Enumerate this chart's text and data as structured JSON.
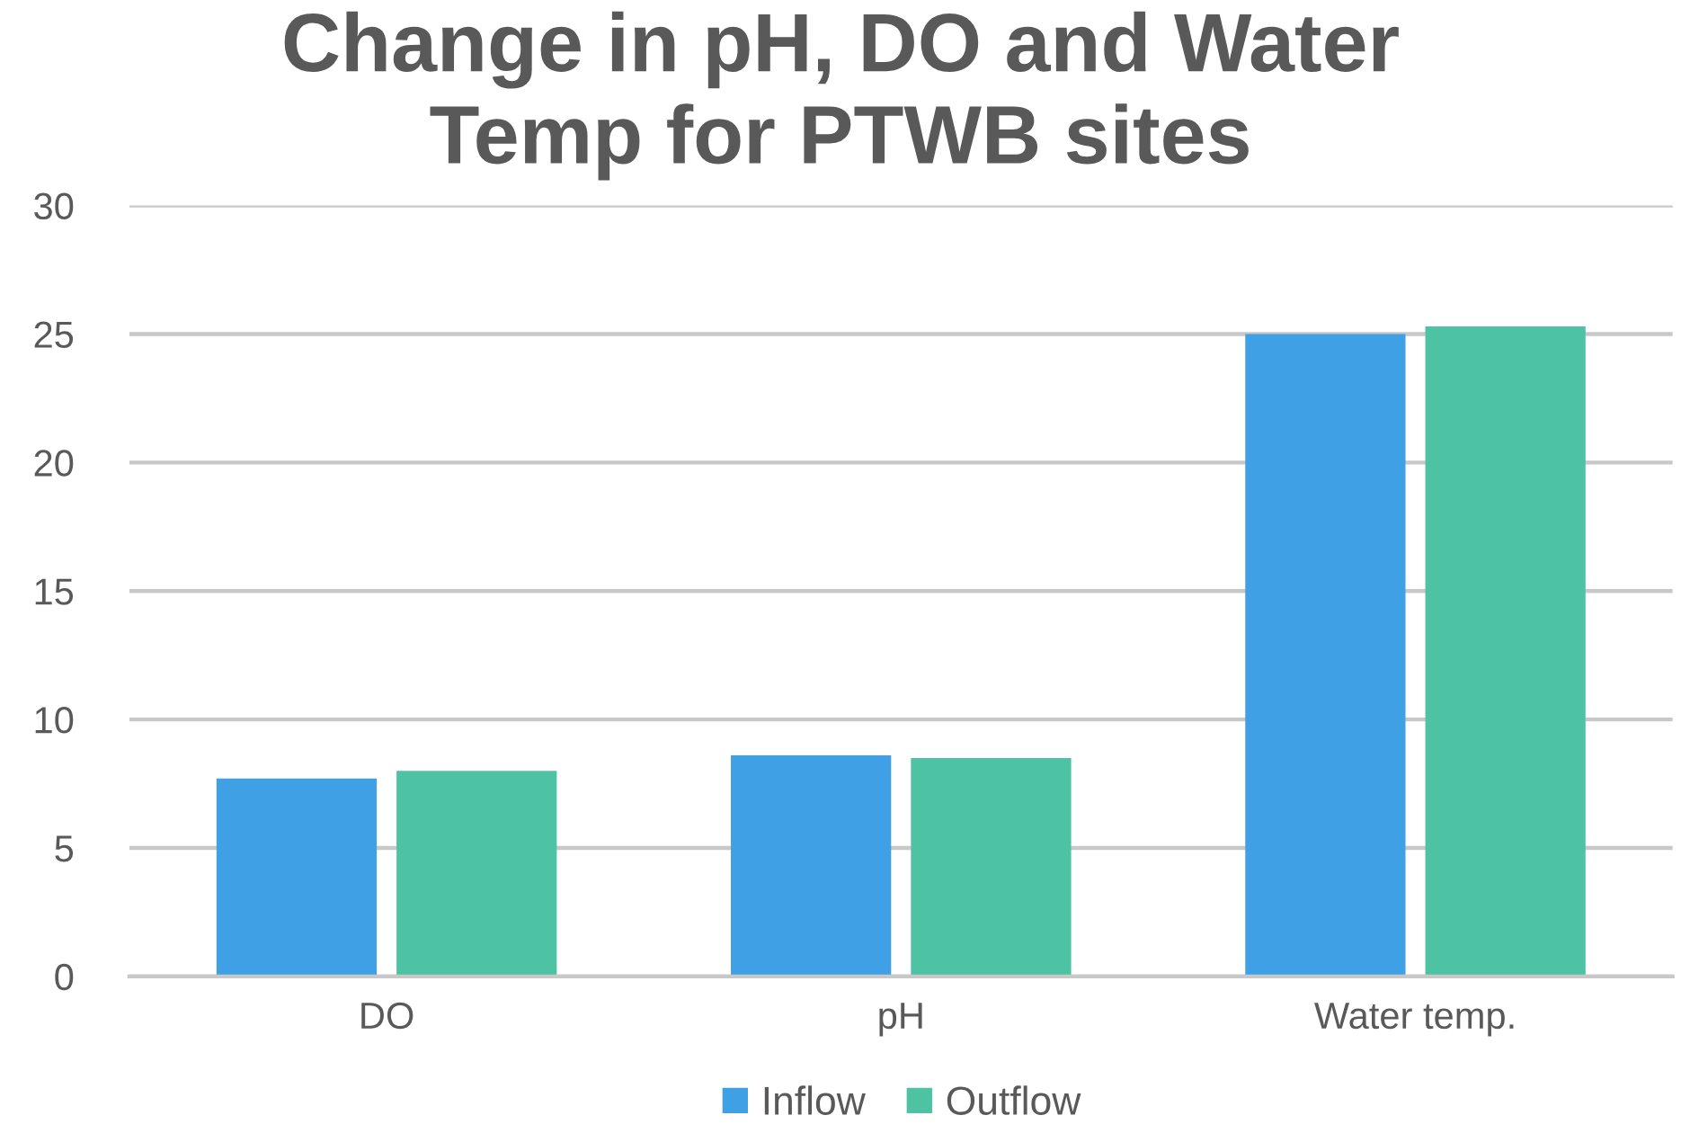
{
  "chart_data": {
    "type": "bar",
    "title": "Change in pH, DO and Water\nTemp for PTWB sites",
    "categories": [
      "DO",
      "pH",
      "Water temp."
    ],
    "series": [
      {
        "name": "Inflow",
        "color": "#3fa0e6",
        "values": [
          7.7,
          8.6,
          25.0
        ]
      },
      {
        "name": "Outflow",
        "color": "#4ec3a4",
        "values": [
          8.0,
          8.5,
          25.3
        ]
      }
    ],
    "ylim": [
      0,
      30
    ],
    "yticks": [
      0,
      5,
      10,
      15,
      20,
      25,
      30
    ],
    "grid": "y",
    "legend": "bottom"
  }
}
